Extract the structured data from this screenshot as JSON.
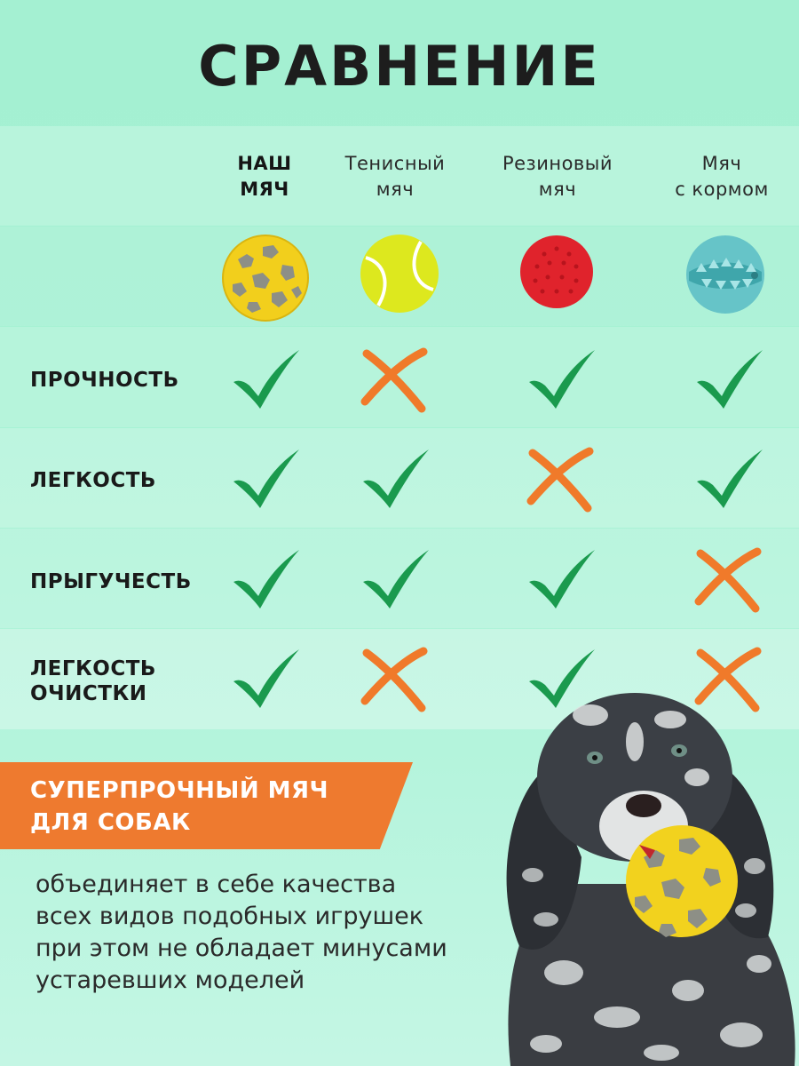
{
  "title": "СРАВНЕНИЕ",
  "columns": [
    {
      "line1": "НАШ",
      "line2": "МЯЧ",
      "ball_icon": "yellow-grey-foam-ball-icon"
    },
    {
      "line1": "Тенисный",
      "line2": "мяч",
      "ball_icon": "tennis-ball-icon"
    },
    {
      "line1": "Резиновый",
      "line2": "мяч",
      "ball_icon": "red-rubber-ball-icon"
    },
    {
      "line1": "Мяч",
      "line2": "с кормом",
      "ball_icon": "treat-ball-icon"
    }
  ],
  "rows": [
    {
      "line1": "ПРОЧНОСТЬ",
      "line2": "",
      "values": [
        true,
        false,
        true,
        true
      ]
    },
    {
      "line1": "ЛЕГКОСТЬ",
      "line2": "",
      "values": [
        true,
        true,
        false,
        true
      ]
    },
    {
      "line1": "ПРЫГУЧЕСТЬ",
      "line2": "",
      "values": [
        true,
        true,
        true,
        false
      ]
    },
    {
      "line1": "ЛЕГКОСТЬ",
      "line2": "ОЧИСТКИ",
      "values": [
        true,
        false,
        true,
        false
      ]
    }
  ],
  "banner": {
    "line1": "СУПЕРПРОЧНЫЙ МЯЧ",
    "line2": "ДЛЯ СОБАК"
  },
  "description": [
    "объединяет в себе качества",
    "всех видов подобных игрушек",
    "при этом не обладает минусами",
    "устаревших моделей"
  ],
  "colors": {
    "check": "#1a9a4e",
    "cross": "#f07a2a",
    "banner": "#ee7a2f",
    "background": "#a6f2d4"
  }
}
